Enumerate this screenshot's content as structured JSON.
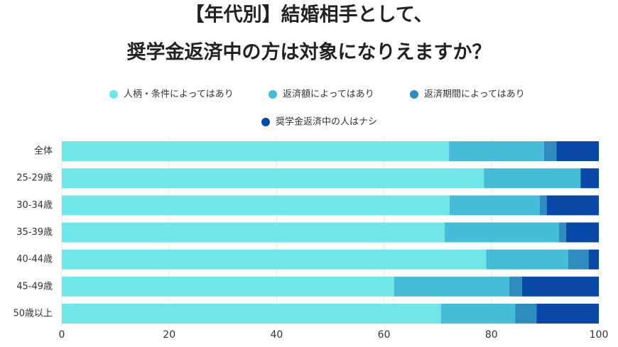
{
  "chart_data": {
    "type": "stacked-bar-horizontal",
    "title": [
      "【年代別】結婚相手として、",
      "奨学金返済中の方は対象になりえますか？"
    ],
    "categories": [
      "全体",
      "25-29歳",
      "30-34歳",
      "35-39歳",
      "40-44歳",
      "45-49歳",
      "50歳以上"
    ],
    "series": [
      {
        "name": "人柄・条件によってはあり",
        "color": "#6fe6e8",
        "values": [
          72.1,
          78.6,
          72.2,
          71.3,
          79.0,
          61.9,
          70.6
        ]
      },
      {
        "name": "返済額によってはあり",
        "color": "#45bcd8",
        "values": [
          17.7,
          18.0,
          16.8,
          21.3,
          15.3,
          21.4,
          13.8
        ]
      },
      {
        "name": "返済期間によってはあり",
        "color": "#2e8cbf",
        "values": [
          2.3,
          0,
          1.3,
          1.3,
          3.8,
          2.4,
          4.0
        ]
      },
      {
        "name": "奨学金返済中の人はナシ",
        "color": "#0a48a8",
        "values": [
          7.9,
          3.4,
          9.7,
          6.1,
          1.9,
          14.3,
          11.6
        ]
      }
    ],
    "xlim": [
      0,
      100
    ],
    "xticks": [
      0,
      20,
      40,
      60,
      80,
      100
    ]
  }
}
